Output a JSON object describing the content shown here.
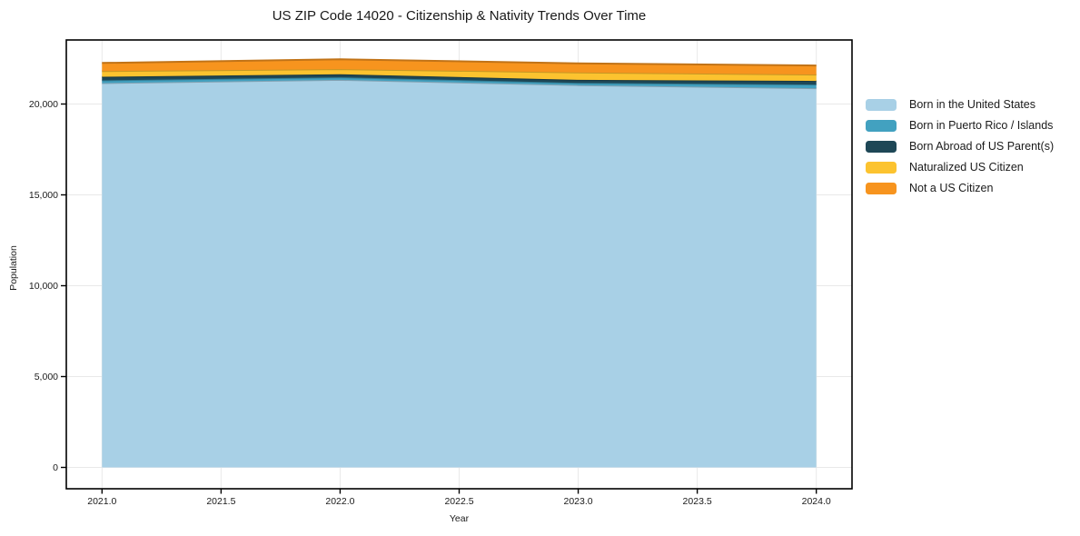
{
  "chart_data": {
    "type": "area",
    "stacked": true,
    "title": "US ZIP Code 14020 - Citizenship & Nativity Trends Over Time",
    "xlabel": "Year",
    "ylabel": "Population",
    "x": [
      2021,
      2022,
      2023,
      2024
    ],
    "series": [
      {
        "name": "Born in the United States",
        "color": "#a8d0e6",
        "values": [
          21150,
          21330,
          21040,
          20870
        ]
      },
      {
        "name": "Born in Puerto Rico / Islands",
        "color": "#42a1c0",
        "values": [
          150,
          140,
          120,
          200
        ]
      },
      {
        "name": "Born Abroad of US Parent(s)",
        "color": "#1e4756",
        "values": [
          200,
          170,
          170,
          200
        ]
      },
      {
        "name": "Naturalized US Citizen",
        "color": "#fcc32f",
        "values": [
          310,
          280,
          410,
          350
        ]
      },
      {
        "name": "Not a US Citizen",
        "color": "#f7941e",
        "values": [
          450,
          540,
          500,
          500
        ]
      }
    ],
    "xlim": [
      2020.85,
      2024.15
    ],
    "ylim": [
      -1175,
      23525
    ],
    "xticks": {
      "values": [
        2021.0,
        2021.5,
        2022.0,
        2022.5,
        2023.0,
        2023.5,
        2024.0
      ],
      "labels": [
        "2021.0",
        "2021.5",
        "2022.0",
        "2022.5",
        "2023.0",
        "2023.5",
        "2024.0"
      ]
    },
    "yticks": {
      "values": [
        0,
        5000,
        10000,
        15000,
        20000
      ],
      "labels": [
        "0",
        "5,000",
        "10,000",
        "15,000",
        "20,000"
      ]
    },
    "grid": true,
    "grid_color": "#e9e9e9",
    "frame_color": "#000000",
    "tick_label_color": "#1a1a1a",
    "legend_position": "right-outside"
  }
}
